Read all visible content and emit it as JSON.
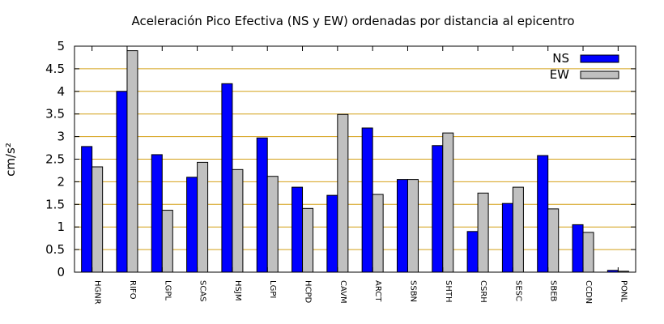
{
  "chart_data": {
    "type": "bar",
    "title": "Aceleración Pico Efectiva (NS y EW) ordenadas por distancia al epicentro",
    "ylabel": "cm/s²",
    "xlabel": "",
    "ylim": [
      0,
      5
    ],
    "yticks": [
      "0",
      "0.5",
      "1",
      "1.5",
      "2",
      "2.5",
      "3",
      "3.5",
      "4",
      "4.5",
      "5"
    ],
    "grid": "horizontal",
    "legend_position": "top-right",
    "categories": [
      "HGNR",
      "RIFO",
      "LGPL",
      "SCAS",
      "HSJM",
      "LGPI",
      "HCPD",
      "CAVM",
      "ARCT",
      "SSBN",
      "SHTH",
      "CSRH",
      "SESC",
      "SBEB",
      "CCDN",
      "PONL"
    ],
    "series": [
      {
        "name": "NS",
        "color": "#0000ff",
        "values": [
          2.78,
          4.0,
          2.6,
          2.1,
          4.17,
          2.97,
          1.88,
          1.7,
          3.19,
          2.05,
          2.8,
          0.9,
          1.52,
          2.58,
          1.05,
          0.04
        ]
      },
      {
        "name": "EW",
        "color": "#c0c0c0",
        "values": [
          2.33,
          4.9,
          1.37,
          2.43,
          2.27,
          2.12,
          1.41,
          3.49,
          1.72,
          2.05,
          3.08,
          1.75,
          1.88,
          1.4,
          0.88,
          0.02
        ]
      }
    ],
    "grid_color": "#d4a017"
  }
}
